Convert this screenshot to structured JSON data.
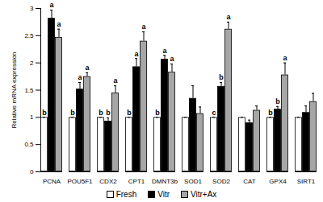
{
  "chart_data": {
    "type": "bar",
    "y_label": "Relative mRNA expression",
    "categories": [
      "PCNA",
      "POU5F1",
      "CDX2",
      "CPT1",
      "DMNT3b",
      "SOD1",
      "SOD2",
      "CAT",
      "GPX4",
      "SIRT1"
    ],
    "series": [
      {
        "name": "Fresh",
        "color": "#ffffff",
        "values": [
          1,
          1,
          1,
          1,
          1,
          1,
          1,
          1,
          1,
          1
        ],
        "errors": [
          0,
          0,
          0,
          0,
          0,
          0,
          0,
          0,
          0,
          0
        ],
        "letters": [
          "b",
          "b",
          "b",
          "b",
          "b",
          null,
          "c",
          null,
          "b",
          null
        ]
      },
      {
        "name": "Vitr",
        "color": "#000000",
        "values": [
          2.82,
          1.52,
          0.93,
          1.93,
          2.07,
          1.35,
          1.57,
          0.9,
          1.15,
          1.09
        ],
        "errors": [
          0.15,
          0.12,
          0.06,
          0.15,
          0.07,
          0.23,
          0.07,
          0.05,
          0.05,
          0.12
        ],
        "letters": [
          "a",
          "a",
          "b",
          "a",
          "a",
          null,
          "b",
          null,
          "b",
          null
        ]
      },
      {
        "name": "Vitr+Ax",
        "color": "#a6a6a6",
        "values": [
          2.47,
          1.75,
          1.45,
          2.4,
          1.83,
          1.07,
          2.62,
          1.13,
          1.78,
          1.29
        ],
        "errors": [
          0.15,
          0.07,
          0.13,
          0.17,
          0.15,
          0.12,
          0.13,
          0.08,
          0.22,
          0.15
        ],
        "letters": [
          "a",
          "a",
          "a",
          "a",
          "a",
          null,
          "a",
          null,
          "a",
          null
        ]
      }
    ],
    "ylim": [
      0,
      3
    ],
    "yticks": [
      0,
      0.5,
      1,
      1.5,
      2,
      2.5,
      3
    ],
    "legend": "bottom"
  }
}
